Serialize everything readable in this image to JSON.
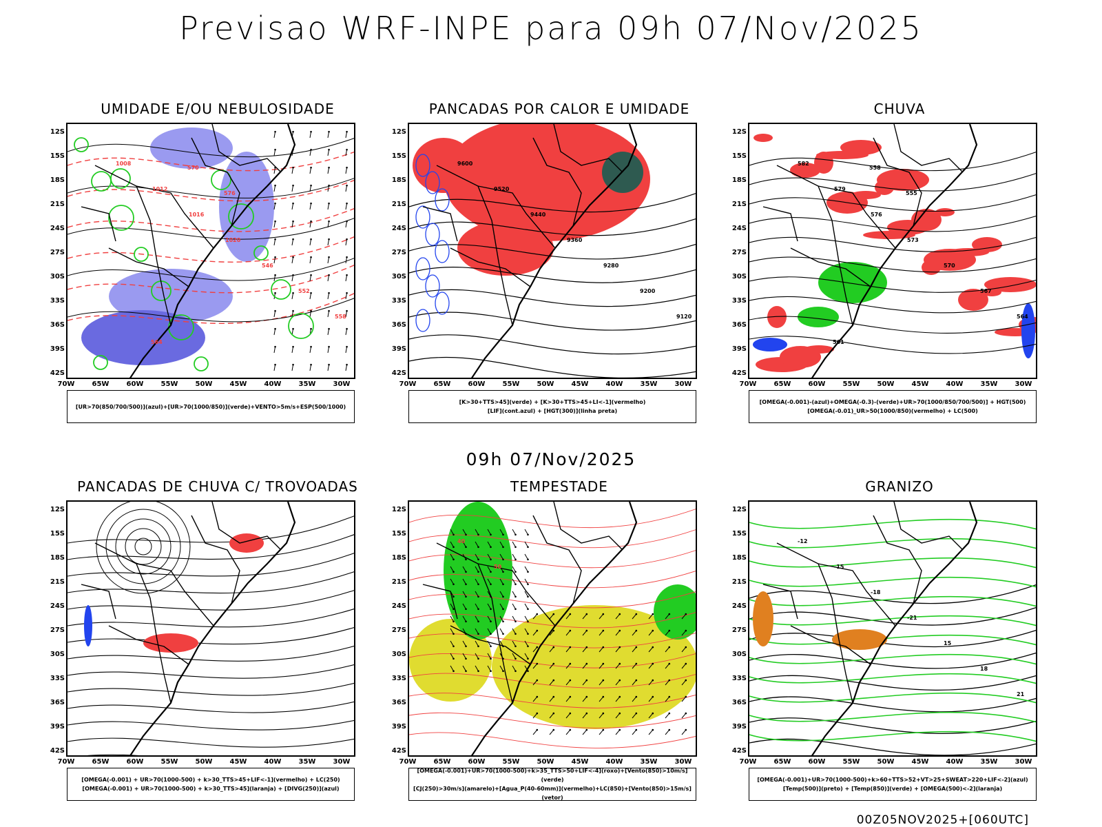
{
  "header": {
    "title": "Previsao WRF-INPE  para 09h 07/Nov/2025",
    "subtitle": "09h 07/Nov/2025",
    "footer": "00Z05NOV2025+[060UTC]"
  },
  "axes": {
    "lat_labels": [
      "12S",
      "15S",
      "18S",
      "21S",
      "24S",
      "27S",
      "30S",
      "33S",
      "36S",
      "39S",
      "42S"
    ],
    "lon_labels": [
      "70W",
      "65W",
      "60W",
      "55W",
      "50W",
      "45W",
      "40W",
      "35W",
      "30W"
    ]
  },
  "colors": {
    "humidity_blue": "#9a9af0",
    "humidity_blue_dark": "#6a6ae0",
    "green": "#22cc22",
    "red": "#f04040",
    "blue": "#2244ee",
    "yellow": "#e0dc30",
    "orange": "#e08020",
    "dark_teal": "#2e5a50"
  },
  "panels": [
    {
      "title": "UMIDADE E/OU NEBULOSIDADE",
      "legend": [
        "[UR>70(850/700/500)](azul)+[UR>70(1000/850)](verde)+VENTO>5m/s+ESP(500/1000)"
      ],
      "contour_labels": [
        "1008",
        "1012",
        "1016",
        "1020",
        "546",
        "552",
        "558",
        "564",
        "570",
        "576"
      ]
    },
    {
      "title": "PANCADAS POR CALOR E UMIDADE",
      "legend": [
        "[K>30+TTS>45](verde) + [K>30+TTS>45+LI<-1](vermelho)",
        "[LIF](cont.azul) + [HGT(300)](linha preta)"
      ],
      "contour_labels": [
        "9600",
        "9520",
        "9440",
        "9360",
        "9280",
        "9200",
        "9120"
      ]
    },
    {
      "title": "CHUVA",
      "legend": [
        "[OMEGA(-0.001)-(azul)+OMEGA(-0.3)-(verde)+UR>70(1000/850/700/500)] + HGT(500)",
        "[OMEGA(-0.01)_UR>50(1000/850)(vermelho) + LC(500)"
      ],
      "contour_labels": [
        "582",
        "579",
        "576",
        "573",
        "570",
        "567",
        "564",
        "561",
        "558",
        "555"
      ]
    },
    {
      "title": "PANCADAS DE CHUVA C/ TROVOADAS",
      "legend": [
        "[OMEGA(-0.001) + UR>70(1000-500) + k>30_TTS>45+LIF<-1](vermelho) + LC(250)",
        "[OMEGA(-0.001) + UR>70(1000-500) + k>30_TTS>45](laranja) + [DIVG(250)](azul)"
      ],
      "contour_labels": []
    },
    {
      "title": "TEMPESTADE",
      "legend": [
        "[OMEGA(-0.001)+UR>70(1000-500)+k>35_TTS>50+LIF<-4](roxo)+[Vento(850)>10m/s](verde)",
        "[CJ(250)>30m/s](amarelo)+[Agua_P(40-60mm)](vermelho)+LC(850)+[Vento(850)>15m/s](vetor)"
      ],
      "contour_labels": [
        "40",
        "50"
      ]
    },
    {
      "title": "GRANIZO",
      "legend": [
        "[OMEGA(-0.001)+UR>70(1000-500)+k>60+TTS>52+VT>25+SWEAT>220+LIF<-2](azul)",
        "[Temp(500)](preto) + [Temp(850)](verde) + [OMEGA(500)<-2](laranja)"
      ],
      "contour_labels": [
        "-12",
        "-15",
        "-18",
        "-21",
        "15",
        "18",
        "21"
      ]
    }
  ]
}
